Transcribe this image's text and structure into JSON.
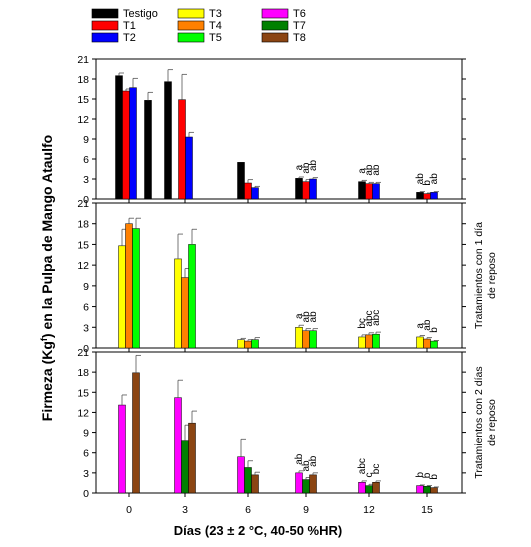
{
  "chart_data": {
    "type": "bar",
    "xlabel": "Días (23 ± 2 °C, 40-50 %HR)",
    "ylabel_parts": [
      "Firmeza (Kg",
      "f",
      ") en la Pulpa de Mango Ataulfo"
    ],
    "x_ticks": [
      "0",
      "3",
      "6",
      "9",
      "12",
      "15"
    ],
    "y_ticks": [
      "0",
      "3",
      "6",
      "9",
      "12",
      "15",
      "18",
      "21"
    ],
    "ylim": [
      0,
      21
    ],
    "legend": [
      {
        "name": "Testigo",
        "color": "#000000"
      },
      {
        "name": "T1",
        "color": "#ff0000"
      },
      {
        "name": "T2",
        "color": "#0000ff"
      },
      {
        "name": "T3",
        "color": "#ffff00"
      },
      {
        "name": "T4",
        "color": "#ff8000"
      },
      {
        "name": "T5",
        "color": "#00ff00"
      },
      {
        "name": "T6",
        "color": "#ff00ff"
      },
      {
        "name": "T7",
        "color": "#008000"
      },
      {
        "name": "T8",
        "color": "#8b4513"
      }
    ],
    "panels": [
      {
        "right_label": "",
        "series": [
          {
            "name": "Testigo",
            "color": "#000000",
            "points": [
              {
                "x": 0,
                "y": 18.5,
                "err": 0.4
              },
              {
                "x": 0,
                "y": 14.8,
                "err": 1.2
              },
              {
                "x": 3,
                "y": 17.6,
                "err": 1.8
              },
              {
                "x": 6,
                "y": 5.5,
                "err": 0
              },
              {
                "x": 9,
                "y": 3.1,
                "err": 0.2
              },
              {
                "x": 12,
                "y": 2.6,
                "err": 0.2
              },
              {
                "x": 15,
                "y": 1.0,
                "err": 0.1
              }
            ]
          },
          {
            "name": "T1",
            "color": "#ff0000",
            "points": [
              {
                "x": 0,
                "y": 16.2,
                "err": 0.3
              },
              {
                "x": 3,
                "y": 14.9,
                "err": 3.8
              },
              {
                "x": 6,
                "y": 2.4,
                "err": 0.5
              },
              {
                "x": 9,
                "y": 2.6,
                "err": 0.3
              },
              {
                "x": 12,
                "y": 2.3,
                "err": 0.2
              },
              {
                "x": 15,
                "y": 0.8,
                "err": 0.1
              }
            ]
          },
          {
            "name": "T2",
            "color": "#0000ff",
            "points": [
              {
                "x": 0,
                "y": 16.7,
                "err": 1.4
              },
              {
                "x": 3,
                "y": 9.3,
                "err": 0.7
              },
              {
                "x": 6,
                "y": 1.7,
                "err": 0.2
              },
              {
                "x": 9,
                "y": 3.0,
                "err": 0.2
              },
              {
                "x": 12,
                "y": 2.3,
                "err": 0.2
              },
              {
                "x": 15,
                "y": 1.0,
                "err": 0.1
              }
            ]
          }
        ],
        "letters": [
          {
            "x": 9,
            "labels": [
              "a",
              "ab",
              "ab"
            ]
          },
          {
            "x": 12,
            "labels": [
              "a",
              "ab",
              "ab"
            ]
          },
          {
            "x": 15,
            "labels": [
              "ab",
              "b",
              "ab"
            ]
          }
        ]
      },
      {
        "right_label": "Tratamientos con 1 día de reposo",
        "series": [
          {
            "name": "T3",
            "color": "#ffff00",
            "points": [
              {
                "x": 0,
                "y": 14.8,
                "err": 2.4
              },
              {
                "x": 3,
                "y": 12.9,
                "err": 3.6
              },
              {
                "x": 6,
                "y": 1.2,
                "err": 0.2
              },
              {
                "x": 9,
                "y": 3.0,
                "err": 0.3
              },
              {
                "x": 12,
                "y": 1.6,
                "err": 0.3
              },
              {
                "x": 15,
                "y": 1.6,
                "err": 0.2
              }
            ]
          },
          {
            "name": "T4",
            "color": "#ff8000",
            "points": [
              {
                "x": 0,
                "y": 18.0,
                "err": 0.8
              },
              {
                "x": 3,
                "y": 10.2,
                "err": 1.3
              },
              {
                "x": 6,
                "y": 1.0,
                "err": 0.2
              },
              {
                "x": 9,
                "y": 2.5,
                "err": 0.3
              },
              {
                "x": 12,
                "y": 1.9,
                "err": 0.3
              },
              {
                "x": 15,
                "y": 1.3,
                "err": 0.2
              }
            ]
          },
          {
            "name": "T5",
            "color": "#00ff00",
            "points": [
              {
                "x": 0,
                "y": 17.3,
                "err": 1.5
              },
              {
                "x": 3,
                "y": 15.0,
                "err": 2.2
              },
              {
                "x": 6,
                "y": 1.2,
                "err": 0.3
              },
              {
                "x": 9,
                "y": 2.5,
                "err": 0.3
              },
              {
                "x": 12,
                "y": 2.0,
                "err": 0.3
              },
              {
                "x": 15,
                "y": 1.0,
                "err": 0.1
              }
            ]
          }
        ],
        "letters": [
          {
            "x": 9,
            "labels": [
              "a",
              "ab",
              "ab"
            ]
          },
          {
            "x": 12,
            "labels": [
              "bc",
              "abc",
              "abc"
            ]
          },
          {
            "x": 15,
            "labels": [
              "a",
              "ab",
              "b"
            ]
          }
        ]
      },
      {
        "right_label": "Tratamientos con 2 días de reposo",
        "series": [
          {
            "name": "T6",
            "color": "#ff00ff",
            "points": [
              {
                "x": 0,
                "y": 13.1,
                "err": 1.5
              },
              {
                "x": 3,
                "y": 14.2,
                "err": 2.6
              },
              {
                "x": 6,
                "y": 5.4,
                "err": 2.6
              },
              {
                "x": 9,
                "y": 3.0,
                "err": 0.3
              },
              {
                "x": 12,
                "y": 1.6,
                "err": 0.2
              },
              {
                "x": 15,
                "y": 1.1,
                "err": 0.1
              }
            ]
          },
          {
            "name": "T7",
            "color": "#008000",
            "points": [
              {
                "x": 3,
                "y": 7.8,
                "err": 2.3
              },
              {
                "x": 6,
                "y": 3.8,
                "err": 1.0
              },
              {
                "x": 9,
                "y": 2.0,
                "err": 0.3
              },
              {
                "x": 12,
                "y": 1.1,
                "err": 0.2
              },
              {
                "x": 15,
                "y": 1.0,
                "err": 0.1
              }
            ]
          },
          {
            "name": "T8",
            "color": "#8b4513",
            "points": [
              {
                "x": 0,
                "y": 17.9,
                "err": 2.6
              },
              {
                "x": 3,
                "y": 10.4,
                "err": 1.8
              },
              {
                "x": 6,
                "y": 2.7,
                "err": 0.4
              },
              {
                "x": 9,
                "y": 2.7,
                "err": 0.3
              },
              {
                "x": 12,
                "y": 1.6,
                "err": 0.2
              },
              {
                "x": 15,
                "y": 0.8,
                "err": 0.1
              }
            ]
          }
        ],
        "letters": [
          {
            "x": 9,
            "labels": [
              "ab",
              "ab",
              "ab"
            ]
          },
          {
            "x": 12,
            "labels": [
              "abc",
              "c",
              "bc"
            ]
          },
          {
            "x": 15,
            "labels": [
              "b",
              "b",
              "b"
            ]
          }
        ]
      }
    ]
  }
}
